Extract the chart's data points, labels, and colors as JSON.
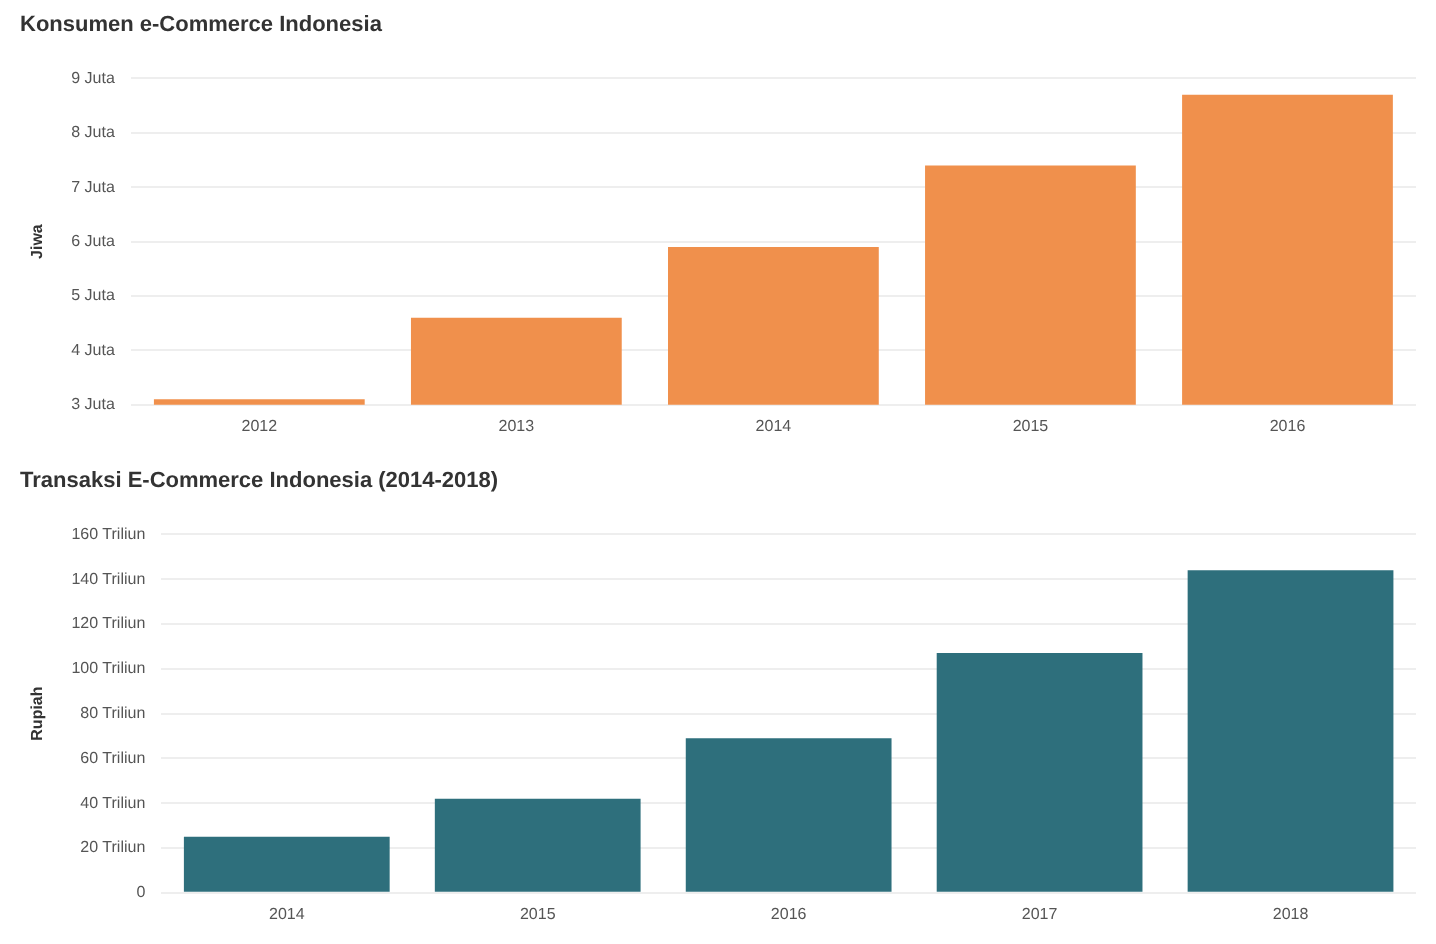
{
  "chart_data": [
    {
      "type": "bar",
      "title": "Konsumen e-Commerce Indonesia",
      "ylabel": "Jiwa",
      "categories": [
        "2012",
        "2013",
        "2014",
        "2015",
        "2016"
      ],
      "series": [
        {
          "color": "#f0904c",
          "values": [
            3.1,
            4.6,
            5.9,
            7.4,
            8.7
          ]
        }
      ],
      "ylim": [
        3,
        9
      ],
      "yticks": [
        {
          "value": 3,
          "label": "3 Juta"
        },
        {
          "value": 4,
          "label": "4 Juta"
        },
        {
          "value": 5,
          "label": "5 Juta"
        },
        {
          "value": 6,
          "label": "6 Juta"
        },
        {
          "value": 7,
          "label": "7 Juta"
        },
        {
          "value": 8,
          "label": "8 Juta"
        },
        {
          "value": 9,
          "label": "9 Juta"
        }
      ],
      "grid": "y",
      "legend": false
    },
    {
      "type": "bar",
      "title": "Transaksi E-Commerce Indonesia (2014-2018)",
      "ylabel": "Rupiah",
      "categories": [
        "2014",
        "2015",
        "2016",
        "2017",
        "2018"
      ],
      "series": [
        {
          "color": "#2e6f7c",
          "values": [
            25,
            42,
            69,
            107,
            144
          ]
        }
      ],
      "ylim": [
        0,
        160
      ],
      "yticks": [
        0,
        {
          "value": 20,
          "label": "20 Triliun"
        },
        {
          "value": 40,
          "label": "40 Triliun"
        },
        {
          "value": 60,
          "label": "60 Triliun"
        },
        {
          "value": 80,
          "label": "80 Triliun"
        },
        {
          "value": 100,
          "label": "100 Triliun"
        },
        {
          "value": 120,
          "label": "120 Triliun"
        },
        {
          "value": 140,
          "label": "140 Triliun"
        },
        {
          "value": 160,
          "label": "160 Triliun"
        }
      ],
      "grid": "y",
      "legend": false
    }
  ]
}
